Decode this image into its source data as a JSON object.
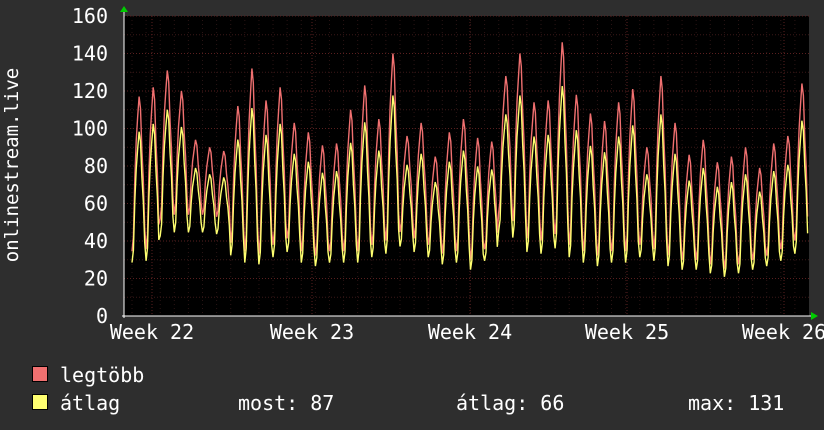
{
  "chart_data": {
    "type": "line",
    "ylabel": "onlinestream.live",
    "ylim": [
      0,
      160
    ],
    "yticks": [
      0,
      20,
      40,
      60,
      80,
      100,
      120,
      140,
      160
    ],
    "x_tick_labels": [
      "Week 22",
      "Week 23",
      "Week 24",
      "Week 25",
      "Week 26"
    ],
    "grid": true,
    "colors": {
      "background": "#000000",
      "max_line": "#f07070",
      "avg_line": "#ffff70",
      "grid": "#5a1f1f"
    },
    "legend": [
      {
        "name": "legtöbb",
        "color": "#f07070"
      },
      {
        "name": "átlag",
        "color": "#ffff70"
      }
    ],
    "stats": {
      "most": "most: 87",
      "atlag": "átlag: 66",
      "max": "max: 131"
    },
    "day_peaks": {
      "max": [
        117,
        122,
        131,
        120,
        94,
        90,
        88,
        112,
        132,
        115,
        122,
        103,
        98,
        91,
        92,
        110,
        123,
        105,
        140,
        96,
        103,
        85,
        98,
        105,
        95,
        93,
        128,
        140,
        114,
        115,
        146,
        118,
        108,
        104,
        114,
        121,
        90,
        128,
        103,
        86,
        94,
        82,
        85,
        90,
        79,
        92,
        96,
        124
      ],
      "min": [
        30,
        31,
        45,
        47,
        47,
        47,
        46,
        34,
        30,
        29,
        33,
        36,
        30,
        28,
        30,
        30,
        30,
        33,
        35,
        39,
        36,
        33,
        29,
        30,
        26,
        31,
        48,
        44,
        36,
        35,
        38,
        33,
        30,
        28,
        30,
        30,
        33,
        31,
        28,
        26,
        26,
        24,
        22,
        24,
        26,
        28,
        31,
        35
      ]
    }
  }
}
